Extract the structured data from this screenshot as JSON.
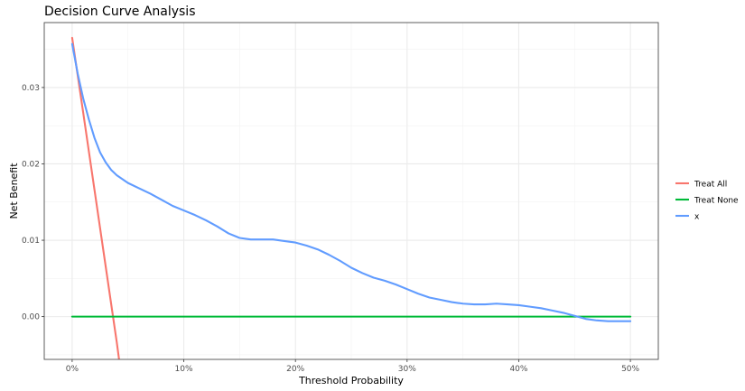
{
  "chart_data": {
    "type": "line",
    "title": "Decision Curve Analysis",
    "xlabel": "Threshold Probability",
    "ylabel": "Net Benefit",
    "xlim": [
      -0.025,
      0.525
    ],
    "ylim": [
      -0.0056,
      0.0385
    ],
    "x_ticks": [
      0,
      0.1,
      0.2,
      0.3,
      0.4,
      0.5
    ],
    "x_tick_labels": [
      "0%",
      "10%",
      "20%",
      "30%",
      "40%",
      "50%"
    ],
    "y_ticks": [
      0,
      0.01,
      0.02,
      0.03
    ],
    "y_tick_labels": [
      "0.00",
      "0.01",
      "0.02",
      "0.03"
    ],
    "grid": true,
    "legend_position": "right",
    "series": [
      {
        "name": "Treat All",
        "color": "#F8766D",
        "x": [
          0,
          0.01,
          0.02,
          0.03,
          0.036,
          0.04,
          0.042
        ],
        "y": [
          0.0365,
          0.0266,
          0.0166,
          0.0066,
          0.0006,
          -0.0034,
          -0.0056
        ]
      },
      {
        "name": "Treat None",
        "color": "#00BA38",
        "x": [
          0,
          0.5
        ],
        "y": [
          0,
          0
        ]
      },
      {
        "name": "x",
        "color": "#619CFF",
        "x": [
          0,
          0.005,
          0.01,
          0.015,
          0.02,
          0.025,
          0.03,
          0.035,
          0.04,
          0.05,
          0.06,
          0.07,
          0.08,
          0.09,
          0.1,
          0.11,
          0.12,
          0.13,
          0.14,
          0.15,
          0.16,
          0.17,
          0.18,
          0.19,
          0.2,
          0.21,
          0.22,
          0.23,
          0.24,
          0.25,
          0.26,
          0.27,
          0.28,
          0.29,
          0.3,
          0.31,
          0.32,
          0.33,
          0.34,
          0.35,
          0.36,
          0.37,
          0.38,
          0.39,
          0.4,
          0.41,
          0.42,
          0.43,
          0.44,
          0.45,
          0.46,
          0.47,
          0.48,
          0.49,
          0.5
        ],
        "y": [
          0.0357,
          0.0318,
          0.0285,
          0.0258,
          0.0234,
          0.0215,
          0.0202,
          0.0192,
          0.0185,
          0.0175,
          0.0168,
          0.0161,
          0.0153,
          0.0145,
          0.0139,
          0.0133,
          0.0126,
          0.0118,
          0.0109,
          0.0103,
          0.0101,
          0.0101,
          0.0101,
          0.0099,
          0.0097,
          0.0093,
          0.0088,
          0.0081,
          0.0073,
          0.0064,
          0.0057,
          0.0051,
          0.0047,
          0.0042,
          0.0036,
          0.003,
          0.0025,
          0.0022,
          0.0019,
          0.0017,
          0.0016,
          0.0016,
          0.0017,
          0.0016,
          0.0015,
          0.0013,
          0.0011,
          0.0008,
          0.0005,
          0.0001,
          -0.0003,
          -0.0005,
          -0.0006,
          -0.0006,
          -0.0006
        ]
      }
    ]
  }
}
